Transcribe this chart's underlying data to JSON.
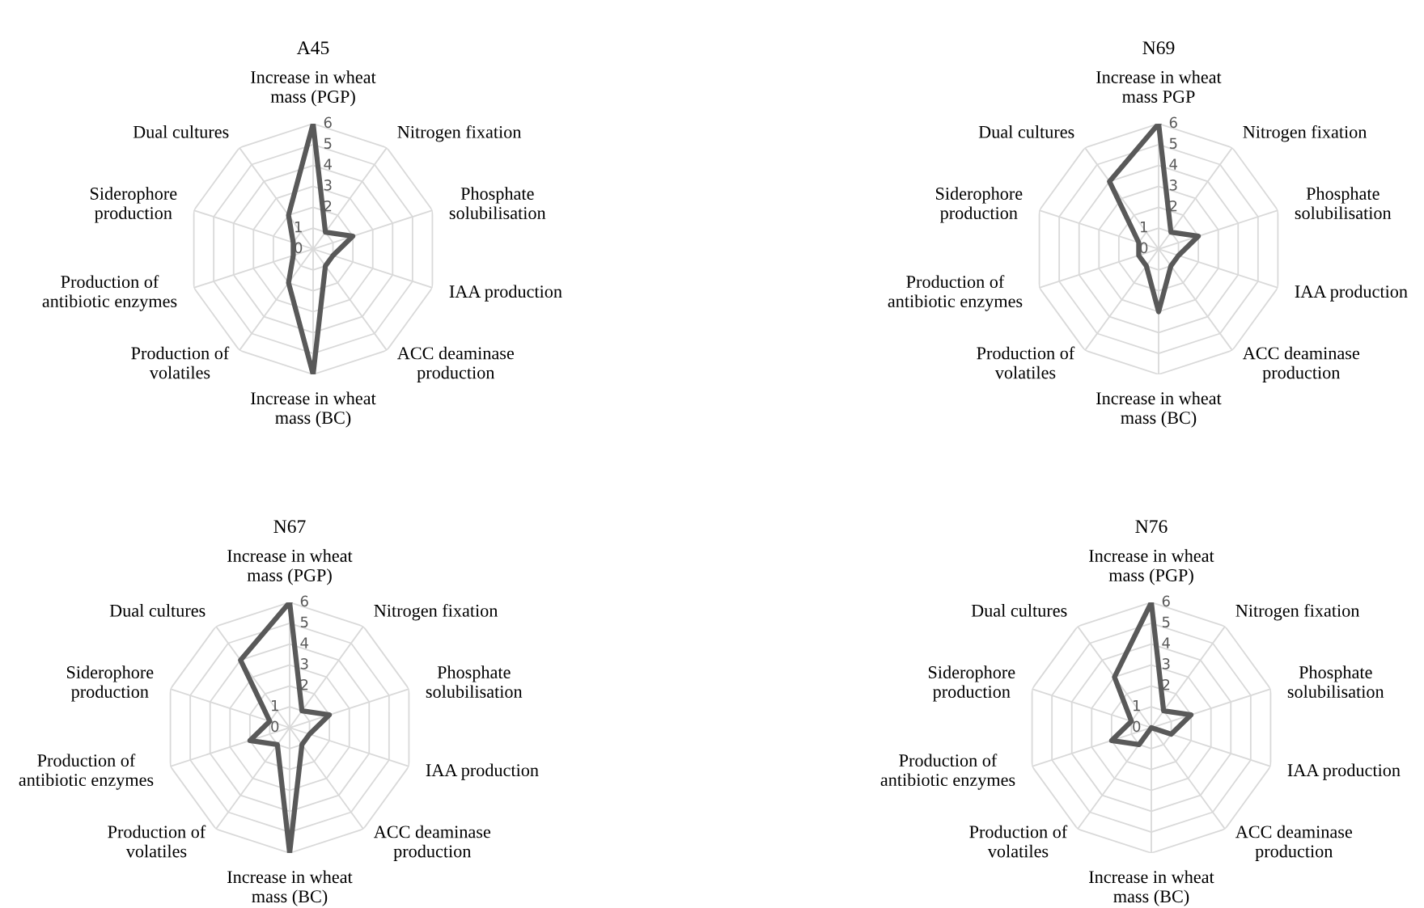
{
  "chart_data": [
    {
      "type": "radar",
      "title": "A45",
      "categories": [
        "Increase in wheat\nmass (PGP)",
        "Nitrogen fixation",
        "Phosphate\nsolubilisation",
        "IAA production",
        "ACC deaminase\nproduction",
        "Increase in wheat\nmass (BC)",
        "Production of\nvolatiles",
        "Production of\nantibiotic enzymes",
        "Siderophore\nproduction",
        "Dual cultures"
      ],
      "series": [
        {
          "color": "#595959",
          "values": [
            6,
            1,
            2,
            1,
            1,
            6,
            2,
            1,
            1,
            2
          ]
        }
      ],
      "ylim": [
        0,
        6
      ],
      "yticks": [
        0,
        1,
        2,
        3,
        4,
        5,
        6
      ],
      "grid": true
    },
    {
      "type": "radar",
      "title": "N69",
      "categories": [
        "Increase in wheat\nmass PGP",
        "Nitrogen fixation",
        "Phosphate\nsolubilisation",
        "IAA production",
        "ACC deaminase\nproduction",
        "Increase in wheat\nmass (BC)",
        "Production of\nvolatiles",
        "Production of\nantibiotic enzymes",
        "Siderophore\nproduction",
        "Dual cultures"
      ],
      "series": [
        {
          "color": "#595959",
          "values": [
            6,
            1,
            2,
            1,
            1,
            3,
            1,
            1,
            1,
            4
          ]
        }
      ],
      "ylim": [
        0,
        6
      ],
      "yticks": [
        0,
        1,
        2,
        3,
        4,
        5,
        6
      ],
      "grid": true
    },
    {
      "type": "radar",
      "title": "N67",
      "categories": [
        "Increase in wheat\nmass (PGP)",
        "Nitrogen fixation",
        "Phosphate\nsolubilisation",
        "IAA production",
        "ACC deaminase\nproduction",
        "Increase in wheat\nmass (BC)",
        "Production of\nvolatiles",
        "Production of\nantibiotic enzymes",
        "Siderophore\nproduction",
        "Dual cultures"
      ],
      "series": [
        {
          "color": "#595959",
          "values": [
            6,
            1,
            2,
            1,
            1,
            6,
            1,
            2,
            1,
            4
          ]
        }
      ],
      "ylim": [
        0,
        6
      ],
      "yticks": [
        0,
        1,
        2,
        3,
        4,
        5,
        6
      ],
      "grid": true
    },
    {
      "type": "radar",
      "title": "N76",
      "categories": [
        "Increase in wheat\nmass (PGP)",
        "Nitrogen fixation",
        "Phosphate\nsolubilisation",
        "IAA production",
        "ACC deaminase\nproduction",
        "Increase in wheat\nmass (BC)",
        "Production of\nvolatiles",
        "Production of\nantibiotic enzymes",
        "Siderophore\nproduction",
        "Dual cultures"
      ],
      "series": [
        {
          "color": "#595959",
          "values": [
            6,
            1,
            2,
            1,
            0,
            0,
            1,
            2,
            1,
            3
          ]
        }
      ],
      "ylim": [
        0,
        6
      ],
      "yticks": [
        0,
        1,
        2,
        3,
        4,
        5,
        6
      ],
      "grid": true
    }
  ]
}
